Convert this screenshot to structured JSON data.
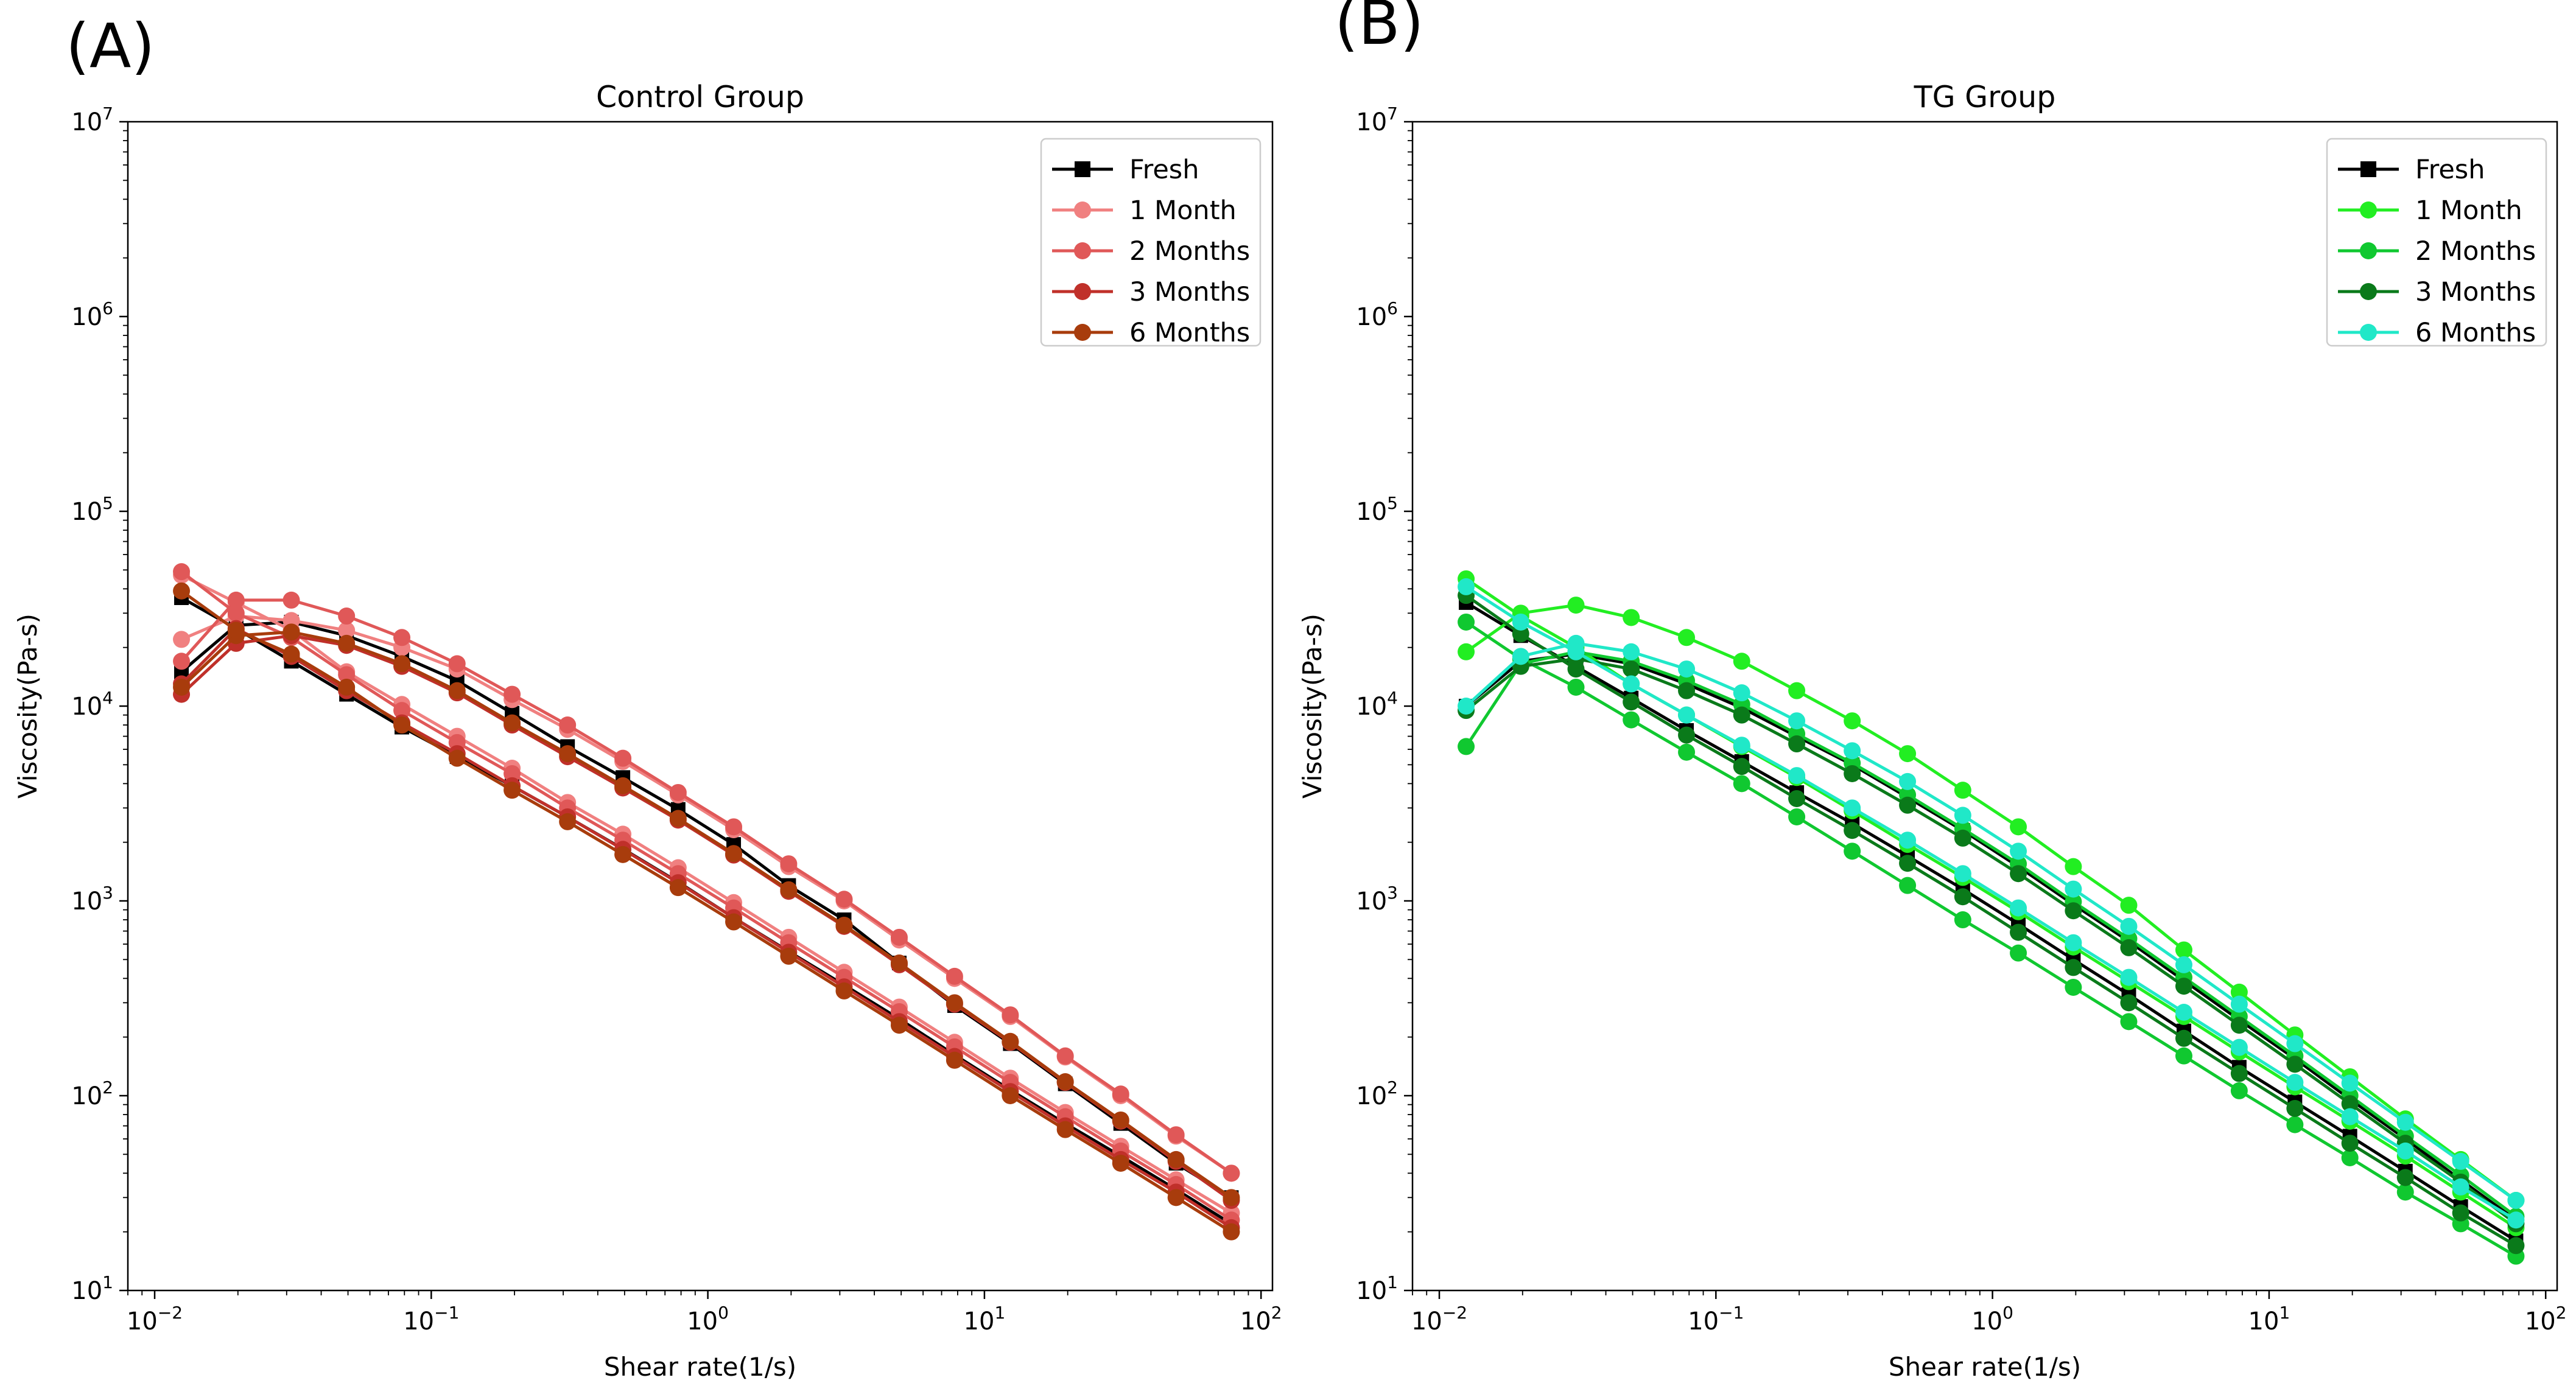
{
  "figure": {
    "panel_labels": [
      "(A)",
      "(B)"
    ]
  },
  "chart_data": [
    {
      "type": "line",
      "title": "Control Group",
      "xlabel": "Shear rate(1/s)",
      "ylabel": "Viscosity(Pa-s)",
      "xscale": "log",
      "yscale": "log",
      "xlim": [
        0.008,
        110
      ],
      "ylim": [
        10,
        10000000
      ],
      "x_ticks": [
        {
          "base": "10",
          "exp": "−2"
        },
        {
          "base": "10",
          "exp": "−1"
        },
        {
          "base": "10",
          "exp": "0"
        },
        {
          "base": "10",
          "exp": "1"
        },
        {
          "base": "10",
          "exp": "2"
        }
      ],
      "y_ticks": [
        {
          "base": "10",
          "exp": "1"
        },
        {
          "base": "10",
          "exp": "2"
        },
        {
          "base": "10",
          "exp": "3"
        },
        {
          "base": "10",
          "exp": "4"
        },
        {
          "base": "10",
          "exp": "5"
        },
        {
          "base": "10",
          "exp": "6"
        },
        {
          "base": "10",
          "exp": "7"
        }
      ],
      "legend_position": "top-right",
      "x": [
        0.0125,
        0.0197,
        0.0312,
        0.0494,
        0.0783,
        0.124,
        0.196,
        0.311,
        0.493,
        0.781,
        1.24,
        1.96,
        3.11,
        4.92,
        7.8,
        12.4,
        19.6,
        31.1,
        49.3,
        78.1
      ],
      "series": [
        {
          "name": "Fresh",
          "color": "#000000",
          "marker": "square",
          "lines": [
            [
              15000,
              26000,
              27000,
              23000,
              18000,
              13500,
              9200,
              6200,
              4300,
              2950,
              1950,
              1200,
              800,
              480,
              290,
              185,
              115,
              72,
              45,
              30
            ],
            [
              36000,
              25000,
              17000,
              11500,
              7800,
              5500,
              3900,
              2700,
              1850,
              1250,
              820,
              550,
              370,
              248,
              162,
              107,
              72,
              49,
              33,
              22
            ]
          ]
        },
        {
          "name": "1 Month",
          "color": "#F08080",
          "marker": "circle",
          "lines": [
            [
              22000,
              29000,
              27500,
              24500,
              20000,
              15500,
              10800,
              7600,
              5200,
              3500,
              2320,
              1500,
              1000,
              630,
              400,
              255,
              158,
              100,
              62,
              40
            ],
            [
              47000,
              34000,
              24500,
              15000,
              10200,
              7000,
              4800,
              3200,
              2200,
              1480,
              980,
              650,
              430,
              285,
              188,
              123,
              82,
              55,
              37,
              25
            ]
          ]
        },
        {
          "name": "2 Months",
          "color": "#E05858",
          "marker": "circle",
          "lines": [
            [
              17000,
              35000,
              35000,
              29000,
              22500,
              16500,
              11500,
              8000,
              5400,
              3600,
              2400,
              1550,
              1020,
              650,
              410,
              260,
              160,
              102,
              63,
              40
            ],
            [
              49000,
              30000,
              22500,
              14500,
              9500,
              6500,
              4500,
              3000,
              2050,
              1380,
              920,
              610,
              405,
              270,
              178,
              117,
              78,
              52,
              35,
              23
            ]
          ]
        },
        {
          "name": "3 Months",
          "color": "#C0302A",
          "marker": "circle",
          "lines": [
            [
              11500,
              21000,
              23000,
              20500,
              16000,
              11700,
              8000,
              5500,
              3800,
              2600,
              1720,
              1120,
              740,
              470,
              295,
              188,
              117,
              74,
              46,
              29
            ],
            [
              13000,
              25000,
              18000,
              12000,
              8200,
              5700,
              3900,
              2700,
              1840,
              1240,
              820,
              545,
              362,
              240,
              159,
              105,
              70,
              47,
              32,
              21
            ]
          ]
        },
        {
          "name": "6 Months",
          "color": "#A83C0C",
          "marker": "circle",
          "lines": [
            [
              12500,
              23000,
              24000,
              21000,
              16500,
              12000,
              8200,
              5700,
              3900,
              2650,
              1750,
              1140,
              750,
              480,
              300,
              190,
              118,
              75,
              47,
              30
            ],
            [
              39000,
              24500,
              18500,
              12500,
              8000,
              5400,
              3700,
              2550,
              1730,
              1170,
              780,
              520,
              345,
              230,
              152,
              100,
              67,
              45,
              30,
              20
            ]
          ]
        }
      ]
    },
    {
      "type": "line",
      "title": "TG Group",
      "xlabel": "Shear rate(1/s)",
      "ylabel": "Viscosity(Pa-s)",
      "xscale": "log",
      "yscale": "log",
      "xlim": [
        0.008,
        110
      ],
      "ylim": [
        10,
        10000000
      ],
      "x_ticks": [
        {
          "base": "10",
          "exp": "−2"
        },
        {
          "base": "10",
          "exp": "−1"
        },
        {
          "base": "10",
          "exp": "0"
        },
        {
          "base": "10",
          "exp": "1"
        },
        {
          "base": "10",
          "exp": "2"
        }
      ],
      "y_ticks": [
        {
          "base": "10",
          "exp": "1"
        },
        {
          "base": "10",
          "exp": "2"
        },
        {
          "base": "10",
          "exp": "3"
        },
        {
          "base": "10",
          "exp": "4"
        },
        {
          "base": "10",
          "exp": "5"
        },
        {
          "base": "10",
          "exp": "6"
        },
        {
          "base": "10",
          "exp": "7"
        }
      ],
      "legend_position": "top-right",
      "x": [
        0.0125,
        0.0197,
        0.0312,
        0.0494,
        0.0783,
        0.124,
        0.196,
        0.311,
        0.493,
        0.781,
        1.24,
        1.96,
        3.11,
        4.92,
        7.8,
        12.4,
        19.6,
        31.1,
        49.3,
        78.1
      ],
      "series": [
        {
          "name": "Fresh",
          "color": "#000000",
          "marker": "square",
          "lines": [
            [
              10000,
              17000,
              18500,
              16500,
              13000,
              9800,
              7000,
              5000,
              3400,
              2300,
              1500,
              960,
              620,
              390,
              245,
              155,
              96,
              60,
              37,
              23
            ],
            [
              34000,
              23000,
              16000,
              11000,
              7500,
              5200,
              3600,
              2500,
              1700,
              1150,
              760,
              500,
              330,
              215,
              140,
              93,
              62,
              41,
              27,
              18
            ]
          ]
        },
        {
          "name": "1 Month",
          "color": "#22EE22",
          "marker": "circle",
          "lines": [
            [
              19000,
              30000,
              33000,
              28500,
              22500,
              17000,
              12000,
              8400,
              5700,
              3700,
              2400,
              1500,
              950,
              560,
              340,
              205,
              125,
              76,
              47,
              29
            ],
            [
              45000,
              29000,
              20000,
              13000,
              9000,
              6200,
              4300,
              2900,
              1950,
              1320,
              880,
              580,
              385,
              255,
              168,
              111,
              74,
              49,
              32,
              21
            ]
          ]
        },
        {
          "name": "2 Months",
          "color": "#10C830",
          "marker": "circle",
          "lines": [
            [
              6200,
              16500,
              19000,
              17000,
              13500,
              10200,
              7200,
              5100,
              3500,
              2350,
              1550,
              990,
              640,
              405,
              255,
              160,
              100,
              62,
              39,
              24
            ],
            [
              27000,
              17500,
              12500,
              8500,
              5800,
              4000,
              2700,
              1800,
              1200,
              800,
              540,
              360,
              240,
              160,
              106,
              71,
              48,
              32,
              22,
              15
            ]
          ]
        },
        {
          "name": "3 Months",
          "color": "#0A7A1A",
          "marker": "circle",
          "lines": [
            [
              9500,
              16000,
              17500,
              15500,
              12000,
              9000,
              6400,
              4500,
              3100,
              2100,
              1380,
              890,
              575,
              365,
              230,
              145,
              91,
              57,
              36,
              22
            ],
            [
              37000,
              23500,
              15500,
              10500,
              7100,
              4900,
              3350,
              2300,
              1560,
              1050,
              690,
              455,
              300,
              197,
              130,
              86,
              57,
              38,
              25,
              17
            ]
          ]
        },
        {
          "name": "6 Months",
          "color": "#20E8C8",
          "marker": "circle",
          "lines": [
            [
              10000,
              18000,
              21000,
              19000,
              15500,
              11700,
              8400,
              5900,
              4100,
              2750,
              1800,
              1150,
              740,
              470,
              295,
              185,
              116,
              73,
              46,
              29
            ],
            [
              41000,
              27000,
              19000,
              13000,
              9000,
              6300,
              4400,
              3000,
              2050,
              1380,
              920,
              610,
              405,
              268,
              177,
              117,
              78,
              52,
              34,
              23
            ]
          ]
        }
      ]
    }
  ]
}
